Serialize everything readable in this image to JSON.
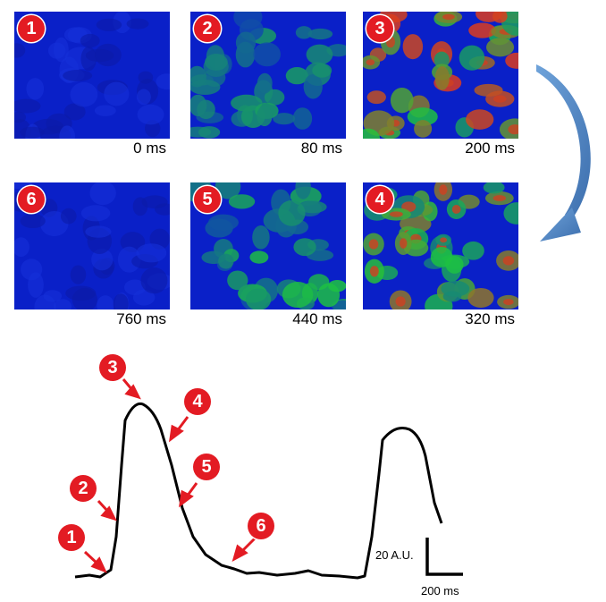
{
  "frames": [
    {
      "badge": "1",
      "time": "0 ms",
      "level": 0.05
    },
    {
      "badge": "2",
      "time": "80 ms",
      "level": 0.35
    },
    {
      "badge": "3",
      "time": "200 ms",
      "level": 1.0
    },
    {
      "badge": "6",
      "time": "760 ms",
      "level": 0.05
    },
    {
      "badge": "5",
      "time": "440 ms",
      "level": 0.45
    },
    {
      "badge": "4",
      "time": "320 ms",
      "level": 0.8
    }
  ],
  "trace_markers": [
    "1",
    "2",
    "3",
    "4",
    "5",
    "6"
  ],
  "scale_bar": {
    "vertical": "20 A.U.",
    "horizontal": "200 ms"
  },
  "colors": {
    "badge": "#e31b23",
    "arrow": "#e31b23",
    "trace": "#000000",
    "cycle_arrow": "#4f86c6"
  }
}
